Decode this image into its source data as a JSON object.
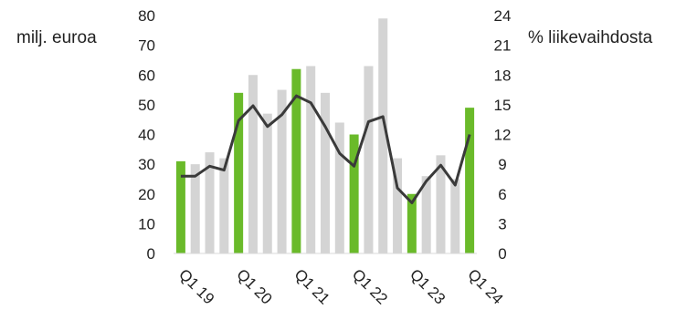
{
  "chart_data": {
    "type": "bar",
    "title": "",
    "ylabel": "milj. euroa",
    "y2label": "% liikevaihdosta",
    "ylim": [
      0,
      80
    ],
    "y2lim": [
      0,
      24
    ],
    "yticks": [
      0,
      10,
      20,
      30,
      40,
      50,
      60,
      70,
      80
    ],
    "y2ticks": [
      0,
      3,
      6,
      9,
      12,
      15,
      18,
      21,
      24
    ],
    "categories": [
      "Q1 19",
      "Q2 19",
      "Q3 19",
      "Q4 19",
      "Q1 20",
      "Q2 20",
      "Q3 20",
      "Q4 20",
      "Q1 21",
      "Q2 21",
      "Q3 21",
      "Q4 21",
      "Q1 22",
      "Q2 22",
      "Q3 22",
      "Q4 22",
      "Q1 23",
      "Q2 23",
      "Q3 23",
      "Q4 23",
      "Q1 24"
    ],
    "xtick_labels": [
      "Q1 19",
      "Q1 20",
      "Q1 21",
      "Q1 22",
      "Q1 23",
      "Q1 24"
    ],
    "xtick_indices": [
      0,
      4,
      8,
      12,
      16,
      20
    ],
    "highlight_indices": [
      0,
      4,
      8,
      12,
      16,
      20
    ],
    "series": [
      {
        "axis": "left",
        "type": "bar",
        "values": [
          31,
          30,
          34,
          32,
          54,
          60,
          47,
          55,
          62,
          63,
          54,
          44,
          40,
          63,
          79,
          32,
          20,
          26,
          33,
          25,
          49
        ]
      },
      {
        "axis": "right",
        "type": "line",
        "values": [
          7.8,
          7.8,
          8.8,
          8.4,
          13.4,
          14.9,
          12.8,
          14.0,
          15.9,
          15.2,
          12.8,
          10.1,
          8.8,
          13.3,
          13.8,
          6.6,
          5.1,
          7.3,
          8.9,
          6.9,
          12.0
        ]
      }
    ]
  },
  "colors": {
    "highlight_bar": "#6aba2a",
    "bar": "#d4d4d4",
    "line": "#3a3a3a"
  }
}
